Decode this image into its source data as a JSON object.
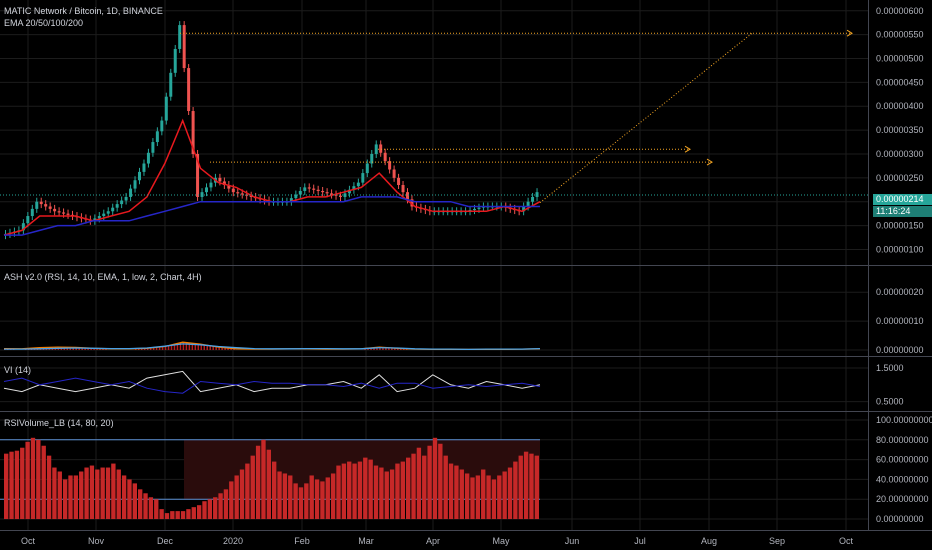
{
  "header": {
    "symbol": "MATIC Network / Bitcoin, 1D, BINANCE",
    "indicator": "EMA 20/50/100/200"
  },
  "price_badge": {
    "price": "0.00000214",
    "countdown": "11:16:24"
  },
  "colors": {
    "bg": "#000000",
    "up": "#26a69a",
    "down": "#ef5350",
    "ema_fast": "#e8191e",
    "ema_slow": "#2626c8",
    "orange": "#f5a623",
    "grid": "#1c1c1c"
  },
  "months": [
    "Oct",
    "Nov",
    "Dec",
    "2020",
    "Feb",
    "Mar",
    "Apr",
    "May",
    "Jun",
    "Jul",
    "Aug",
    "Sep",
    "Oct"
  ],
  "chart_data": [
    {
      "type": "line",
      "name": "price",
      "x_axis": [
        "Oct",
        "Nov",
        "Dec",
        "2020",
        "Feb",
        "Mar",
        "Apr",
        "May"
      ],
      "y_ticks": [
        "0.00000600",
        "0.00000550",
        "0.00000500",
        "0.00000450",
        "0.00000400",
        "0.00000350",
        "0.00000300",
        "0.00000250",
        "0.00000200",
        "0.00000150",
        "0.00000100"
      ],
      "ylim": [
        8e-07,
        6.1e-06
      ],
      "series": [
        {
          "color": "#26a69a",
          "values": [
            1.3e-06,
            1.4e-06,
            2e-06,
            1.8e-06,
            1.7e-06,
            1.6e-06,
            1.8e-06,
            2.1e-06,
            2.8e-06,
            3.7e-06,
            5.7e-06,
            2.1e-06,
            2.5e-06,
            2.2e-06,
            2.1e-06,
            2e-06,
            2e-06,
            2.3e-06,
            2.2e-06,
            2.1e-06,
            2.4e-06,
            3.2e-06,
            2.5e-06,
            1.9e-06,
            1.8e-06,
            1.8e-06,
            1.8e-06,
            1.9e-06,
            1.9e-06,
            1.8e-06,
            2.2e-06
          ]
        },
        {
          "color": "#e8191e",
          "values": [
            1.3e-06,
            1.4e-06,
            1.7e-06,
            1.7e-06,
            1.7e-06,
            1.6e-06,
            1.7e-06,
            1.8e-06,
            2.1e-06,
            2.8e-06,
            3.7e-06,
            2.7e-06,
            2.4e-06,
            2.3e-06,
            2.1e-06,
            2e-06,
            2e-06,
            2.1e-06,
            2.1e-06,
            2.2e-06,
            2.3e-06,
            2.6e-06,
            2.2e-06,
            1.9e-06,
            1.8e-06,
            1.8e-06,
            1.8e-06,
            1.8e-06,
            1.9e-06,
            1.8e-06,
            2e-06
          ]
        },
        {
          "color": "#2626c8",
          "values": [
            1.3e-06,
            1.3e-06,
            1.4e-06,
            1.5e-06,
            1.5e-06,
            1.6e-06,
            1.6e-06,
            1.6e-06,
            1.7e-06,
            1.8e-06,
            1.9e-06,
            2e-06,
            2e-06,
            2e-06,
            2e-06,
            2e-06,
            2e-06,
            2e-06,
            2e-06,
            2e-06,
            2.1e-06,
            2.1e-06,
            2.1e-06,
            2e-06,
            2e-06,
            2e-06,
            1.9e-06,
            1.9e-06,
            1.9e-06,
            1.9e-06,
            1.9e-06
          ]
        }
      ],
      "annotations": [
        {
          "type": "horizontal-dotted",
          "level": 5.53e-06
        },
        {
          "type": "horizontal-dotted",
          "level": 3.1e-06
        },
        {
          "type": "horizontal-dotted",
          "level": 2.83e-06
        },
        {
          "type": "horizontal-dotted",
          "level": 2.14e-06
        }
      ]
    },
    {
      "type": "area",
      "name": "ASH v2.0 (RSI, 14, 10, EMA, 1, low, 2, Chart, 4H)",
      "y_ticks": [
        "0.00000020",
        "0.00000010",
        "0.00000000"
      ],
      "ylim": [
        0,
        2.7e-07
      ],
      "series": [
        {
          "color": "#e8191e",
          "values": [
            5e-09,
            4e-09,
            8e-09,
            1e-08,
            9e-09,
            6e-09,
            4e-09,
            4e-09,
            6e-09,
            1.2e-08,
            2.7e-08,
            2e-08,
            1e-08,
            4e-09,
            3e-09,
            3e-09,
            4e-09,
            4e-09,
            3e-09,
            3e-09,
            4e-09,
            1e-08,
            6e-09,
            3e-09,
            2e-09,
            2e-09,
            2e-09,
            2e-09,
            2e-09,
            3e-09,
            4e-09
          ]
        },
        {
          "color": "#4aa3e8",
          "values": [
            3e-09,
            3e-09,
            4e-09,
            6e-09,
            7e-09,
            6e-09,
            5e-09,
            5e-09,
            7e-09,
            1.3e-08,
            2.1e-08,
            1.8e-08,
            1.2e-08,
            8e-09,
            5e-09,
            4e-09,
            4e-09,
            5e-09,
            5e-09,
            4e-09,
            4e-09,
            8e-09,
            7e-09,
            4e-09,
            3e-09,
            3e-09,
            2e-09,
            3e-09,
            3e-09,
            3e-09,
            5e-09
          ]
        }
      ]
    },
    {
      "type": "line",
      "name": "VI (14)",
      "y_ticks": [
        "1.5000",
        "0.5000"
      ],
      "ylim": [
        0.4,
        1.65
      ],
      "series": [
        {
          "color": "#e0e0e0",
          "values": [
            0.9,
            0.8,
            1.0,
            0.9,
            0.8,
            0.9,
            1.0,
            0.9,
            1.2,
            1.3,
            1.4,
            0.8,
            0.9,
            1.0,
            0.8,
            0.9,
            0.9,
            1.0,
            1.0,
            1.1,
            0.9,
            1.3,
            0.8,
            0.9,
            1.3,
            1.0,
            0.9,
            1.1,
            1.0,
            0.9,
            1.0
          ]
        },
        {
          "color": "#2626c8",
          "values": [
            1.1,
            1.2,
            1.0,
            1.1,
            1.2,
            1.1,
            1.0,
            1.1,
            0.9,
            0.8,
            0.75,
            1.1,
            1.05,
            1.0,
            1.1,
            1.05,
            1.05,
            1.0,
            1.0,
            0.95,
            1.05,
            0.9,
            1.05,
            1.05,
            0.9,
            0.95,
            1.0,
            0.95,
            1.0,
            1.05,
            0.95
          ]
        }
      ]
    },
    {
      "type": "bar",
      "name": "RSIVolume_LB (14, 80, 20)",
      "y_ticks": [
        "100.00000000",
        "80.00000000",
        "60.00000000",
        "40.00000000",
        "20.00000000",
        "0.00000000"
      ],
      "ylim": [
        -5,
        102
      ],
      "reference_lines": [
        80,
        20
      ],
      "values": [
        66,
        68,
        69,
        72,
        78,
        82,
        80,
        74,
        64,
        52,
        48,
        40,
        44,
        44,
        48,
        52,
        54,
        50,
        52,
        52,
        56,
        50,
        44,
        40,
        36,
        30,
        26,
        22,
        20,
        10,
        6,
        8,
        8,
        8,
        10,
        12,
        14,
        18,
        20,
        22,
        26,
        30,
        38,
        44,
        50,
        56,
        64,
        74,
        80,
        70,
        58,
        48,
        46,
        44,
        36,
        32,
        36,
        44,
        40,
        38,
        42,
        46,
        54,
        56,
        58,
        56,
        58,
        62,
        60,
        54,
        52,
        48,
        50,
        56,
        58,
        62,
        66,
        72,
        64,
        74,
        82,
        76,
        64,
        56,
        54,
        50,
        46,
        42,
        44,
        50,
        44,
        40,
        44,
        48,
        52,
        58,
        64,
        68,
        66,
        64
      ]
    }
  ]
}
